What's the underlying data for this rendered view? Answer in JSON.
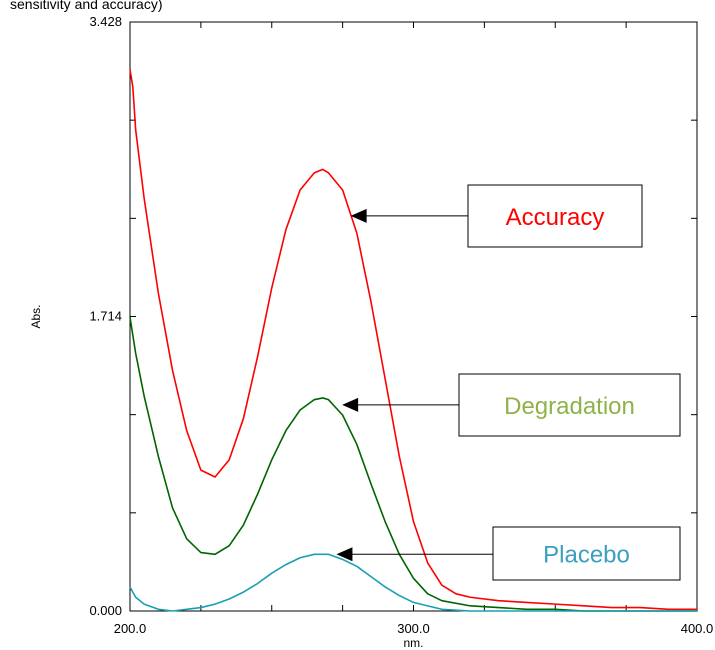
{
  "top_text": "sensitivity and accuracy)",
  "chart_data": {
    "type": "line",
    "title": "",
    "xlabel": "nm.",
    "ylabel": "Abs.",
    "xlim": [
      200.0,
      400.0
    ],
    "ylim": [
      0.0,
      3.428
    ],
    "x_tick_labels": [
      "200.0",
      "300.0",
      "400.0"
    ],
    "y_tick_labels": [
      "0.000",
      "1.714",
      "3.428"
    ],
    "grid": false,
    "series": [
      {
        "name": "Accuracy",
        "color": "#ff0000",
        "x": [
          200,
          201,
          202,
          205,
          210,
          215,
          220,
          225,
          230,
          235,
          240,
          245,
          250,
          255,
          260,
          265,
          268,
          270,
          275,
          280,
          285,
          290,
          295,
          300,
          305,
          310,
          315,
          320,
          330,
          340,
          350,
          360,
          370,
          380,
          390,
          400
        ],
        "y": [
          3.15,
          3.05,
          2.8,
          2.4,
          1.85,
          1.4,
          1.05,
          0.82,
          0.78,
          0.88,
          1.12,
          1.48,
          1.88,
          2.22,
          2.45,
          2.55,
          2.57,
          2.55,
          2.45,
          2.2,
          1.8,
          1.35,
          0.9,
          0.52,
          0.28,
          0.15,
          0.1,
          0.08,
          0.06,
          0.05,
          0.04,
          0.03,
          0.02,
          0.02,
          0.01,
          0.01
        ]
      },
      {
        "name": "Degradation",
        "color": "#006400",
        "x": [
          200,
          202,
          205,
          210,
          215,
          220,
          225,
          230,
          235,
          240,
          245,
          250,
          255,
          260,
          265,
          268,
          270,
          275,
          280,
          285,
          290,
          295,
          300,
          305,
          310,
          320,
          330,
          340,
          350,
          360,
          380,
          400
        ],
        "y": [
          1.71,
          1.5,
          1.25,
          0.9,
          0.6,
          0.42,
          0.34,
          0.33,
          0.38,
          0.5,
          0.68,
          0.88,
          1.05,
          1.17,
          1.23,
          1.24,
          1.23,
          1.14,
          0.97,
          0.74,
          0.52,
          0.33,
          0.19,
          0.1,
          0.06,
          0.03,
          0.02,
          0.01,
          0.01,
          0.0,
          0.0,
          0.0
        ]
      },
      {
        "name": "Placebo",
        "color": "#1a9fb0",
        "x": [
          200,
          202,
          205,
          210,
          215,
          220,
          225,
          230,
          235,
          240,
          245,
          250,
          255,
          260,
          265,
          268,
          270,
          275,
          280,
          285,
          290,
          295,
          300,
          305,
          310,
          320,
          330,
          340,
          400
        ],
        "y": [
          0.14,
          0.08,
          0.04,
          0.01,
          0.0,
          0.01,
          0.02,
          0.04,
          0.07,
          0.11,
          0.16,
          0.22,
          0.27,
          0.31,
          0.33,
          0.33,
          0.33,
          0.3,
          0.26,
          0.2,
          0.14,
          0.09,
          0.05,
          0.03,
          0.01,
          0.0,
          0.0,
          0.0,
          0.0
        ]
      }
    ],
    "annotations": [
      {
        "text": "Accuracy",
        "color": "#ff0000",
        "points_to": [
          275,
          2.3
        ]
      },
      {
        "text": "Degradation",
        "color": "#8fb34a",
        "points_to": [
          272,
          1.2
        ]
      },
      {
        "text": "Placebo",
        "color": "#3a9fc0",
        "points_to": [
          270,
          0.33
        ]
      }
    ]
  }
}
